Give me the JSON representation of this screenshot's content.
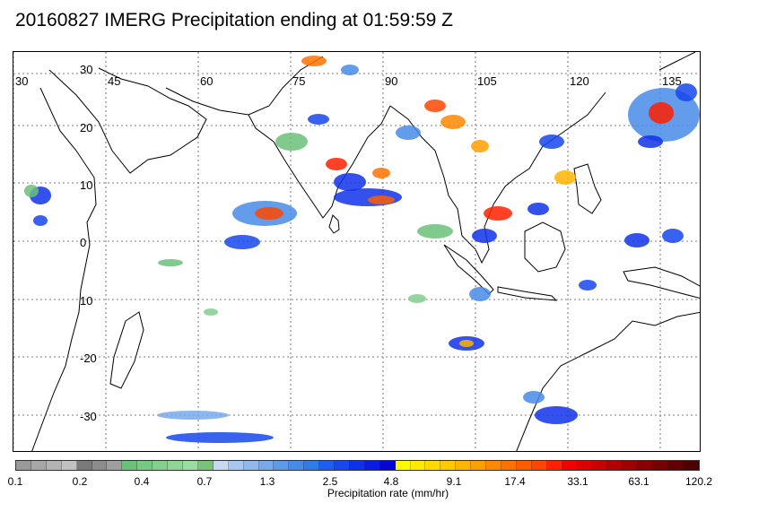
{
  "title": "20160827 IMERG Precipitation ending at 01:59:59 Z",
  "map": {
    "lon_labels": [
      "30",
      "45",
      "60",
      "75",
      "90",
      "105",
      "120",
      "135"
    ],
    "lat_labels": [
      "30",
      "20",
      "10",
      "0",
      "10",
      "-20",
      "-30"
    ]
  },
  "colorbar": {
    "colors": [
      "#999999",
      "#a7a7a7",
      "#b4b4b4",
      "#c1c1c1",
      "#7a7a7a",
      "#8c8c8c",
      "#9f9f9f",
      "#6cc07a",
      "#77c884",
      "#82cf8e",
      "#8dd698",
      "#98dda2",
      "#7ac27a",
      "#c8d8f2",
      "#a8c7f0",
      "#8fb8ee",
      "#77a9ec",
      "#5f9aea",
      "#478be8",
      "#2f7ce6",
      "#1e5df2",
      "#1747ee",
      "#1031ea",
      "#0a1be6",
      "#0505d8",
      "#fffa00",
      "#ffea00",
      "#ffda00",
      "#ffca00",
      "#ffb400",
      "#ff9e00",
      "#ff8800",
      "#ff7200",
      "#ff5c00",
      "#ff4600",
      "#ff2000",
      "#f00000",
      "#dd0000",
      "#c80000",
      "#b20000",
      "#9e0000",
      "#8a0000",
      "#760000",
      "#620000",
      "#4e0000"
    ],
    "ticks": [
      "0.1",
      "0.2",
      "0.4",
      "0.7",
      "1.3",
      "2.5",
      "4.8",
      "9.1",
      "17.4",
      "33.1",
      "63.1",
      "120.2"
    ],
    "label": "Precipitation rate (mm/hr)"
  }
}
